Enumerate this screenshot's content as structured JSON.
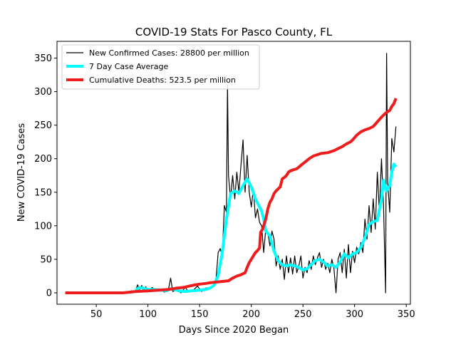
{
  "chart_data": {
    "type": "line",
    "title": "COVID-19 Stats For Pasco County, FL",
    "xlabel": "Days Since 2020 Began",
    "ylabel": "New COVID-19 Cases",
    "xlim": [
      12,
      354
    ],
    "ylim": [
      -17,
      375
    ],
    "xticks": [
      50,
      100,
      150,
      200,
      250,
      300,
      350
    ],
    "yticks": [
      0,
      50,
      100,
      150,
      200,
      250,
      300,
      350
    ],
    "grid": false,
    "legend_position": "top-left",
    "series": [
      {
        "name": "New Confirmed Cases: 28800 per million",
        "color": "#000000",
        "line_width": 1.2,
        "points": [
          [
            20,
            0
          ],
          [
            40,
            0
          ],
          [
            60,
            0
          ],
          [
            75,
            0
          ],
          [
            80,
            1
          ],
          [
            84,
            3
          ],
          [
            88,
            2
          ],
          [
            90,
            12
          ],
          [
            92,
            5
          ],
          [
            94,
            11
          ],
          [
            96,
            3
          ],
          [
            98,
            9
          ],
          [
            100,
            2
          ],
          [
            104,
            8
          ],
          [
            108,
            3
          ],
          [
            112,
            5
          ],
          [
            116,
            1
          ],
          [
            120,
            6
          ],
          [
            122,
            22
          ],
          [
            124,
            2
          ],
          [
            128,
            5
          ],
          [
            132,
            0
          ],
          [
            136,
            8
          ],
          [
            140,
            1
          ],
          [
            144,
            4
          ],
          [
            148,
            10
          ],
          [
            152,
            2
          ],
          [
            156,
            7
          ],
          [
            160,
            8
          ],
          [
            164,
            11
          ],
          [
            166,
            22
          ],
          [
            168,
            60
          ],
          [
            170,
            66
          ],
          [
            172,
            55
          ],
          [
            174,
            130
          ],
          [
            176,
            120
          ],
          [
            177,
            310
          ],
          [
            178,
            175
          ],
          [
            180,
            140
          ],
          [
            182,
            175
          ],
          [
            184,
            140
          ],
          [
            186,
            180
          ],
          [
            188,
            150
          ],
          [
            190,
            190
          ],
          [
            192,
            228
          ],
          [
            194,
            150
          ],
          [
            196,
            205
          ],
          [
            198,
            150
          ],
          [
            200,
            128
          ],
          [
            202,
            155
          ],
          [
            204,
            112
          ],
          [
            206,
            125
          ],
          [
            208,
            105
          ],
          [
            210,
            100
          ],
          [
            212,
            60
          ],
          [
            214,
            95
          ],
          [
            216,
            90
          ],
          [
            218,
            70
          ],
          [
            220,
            92
          ],
          [
            222,
            80
          ],
          [
            224,
            40
          ],
          [
            226,
            55
          ],
          [
            228,
            35
          ],
          [
            230,
            50
          ],
          [
            232,
            20
          ],
          [
            234,
            55
          ],
          [
            236,
            30
          ],
          [
            238,
            52
          ],
          [
            240,
            28
          ],
          [
            242,
            55
          ],
          [
            244,
            30
          ],
          [
            246,
            40
          ],
          [
            248,
            55
          ],
          [
            250,
            22
          ],
          [
            252,
            38
          ],
          [
            254,
            30
          ],
          [
            256,
            48
          ],
          [
            258,
            35
          ],
          [
            260,
            55
          ],
          [
            262,
            42
          ],
          [
            264,
            52
          ],
          [
            266,
            60
          ],
          [
            268,
            38
          ],
          [
            270,
            50
          ],
          [
            272,
            35
          ],
          [
            274,
            44
          ],
          [
            276,
            30
          ],
          [
            278,
            50
          ],
          [
            280,
            36
          ],
          [
            282,
            0
          ],
          [
            284,
            50
          ],
          [
            286,
            60
          ],
          [
            288,
            30
          ],
          [
            290,
            65
          ],
          [
            292,
            22
          ],
          [
            294,
            72
          ],
          [
            296,
            30
          ],
          [
            298,
            62
          ],
          [
            300,
            45
          ],
          [
            302,
            68
          ],
          [
            304,
            58
          ],
          [
            306,
            75
          ],
          [
            308,
            60
          ],
          [
            310,
            110
          ],
          [
            312,
            80
          ],
          [
            314,
            130
          ],
          [
            316,
            90
          ],
          [
            318,
            140
          ],
          [
            320,
            95
          ],
          [
            322,
            180
          ],
          [
            324,
            120
          ],
          [
            326,
            200
          ],
          [
            328,
            130
          ],
          [
            330,
            0
          ],
          [
            331,
            357
          ],
          [
            332,
            165
          ],
          [
            334,
            120
          ],
          [
            336,
            230
          ],
          [
            338,
            210
          ],
          [
            340,
            248
          ]
        ]
      },
      {
        "name": "7 Day Case Average",
        "color": "#00ffff",
        "line_width": 4,
        "points": [
          [
            88,
            4
          ],
          [
            92,
            8
          ],
          [
            96,
            7
          ],
          [
            100,
            5
          ],
          [
            106,
            5
          ],
          [
            112,
            4
          ],
          [
            118,
            3
          ],
          [
            122,
            6
          ],
          [
            126,
            5
          ],
          [
            130,
            3
          ],
          [
            136,
            2
          ],
          [
            142,
            3
          ],
          [
            150,
            4
          ],
          [
            156,
            5
          ],
          [
            160,
            7
          ],
          [
            164,
            11
          ],
          [
            168,
            26
          ],
          [
            172,
            60
          ],
          [
            176,
            110
          ],
          [
            180,
            148
          ],
          [
            184,
            152
          ],
          [
            188,
            148
          ],
          [
            192,
            160
          ],
          [
            196,
            170
          ],
          [
            200,
            158
          ],
          [
            204,
            140
          ],
          [
            208,
            128
          ],
          [
            210,
            122
          ],
          [
            212,
            110
          ],
          [
            214,
            92
          ],
          [
            218,
            85
          ],
          [
            222,
            62
          ],
          [
            226,
            48
          ],
          [
            230,
            42
          ],
          [
            234,
            40
          ],
          [
            238,
            42
          ],
          [
            242,
            40
          ],
          [
            246,
            38
          ],
          [
            250,
            34
          ],
          [
            254,
            36
          ],
          [
            258,
            42
          ],
          [
            262,
            48
          ],
          [
            266,
            50
          ],
          [
            270,
            46
          ],
          [
            274,
            40
          ],
          [
            278,
            42
          ],
          [
            282,
            38
          ],
          [
            286,
            46
          ],
          [
            290,
            58
          ],
          [
            294,
            52
          ],
          [
            298,
            58
          ],
          [
            302,
            60
          ],
          [
            306,
            68
          ],
          [
            310,
            82
          ],
          [
            314,
            102
          ],
          [
            318,
            106
          ],
          [
            322,
            108
          ],
          [
            326,
            140
          ],
          [
            328,
            168
          ],
          [
            331,
            152
          ],
          [
            334,
            160
          ],
          [
            336,
            180
          ],
          [
            338,
            192
          ],
          [
            340,
            188
          ]
        ]
      },
      {
        "name": "Cumulative Deaths: 523.5 per million",
        "color": "#ee1c1c",
        "line_width": 4,
        "points": [
          [
            20,
            0
          ],
          [
            40,
            0
          ],
          [
            60,
            0
          ],
          [
            76,
            0
          ],
          [
            82,
            1
          ],
          [
            88,
            2
          ],
          [
            100,
            3
          ],
          [
            110,
            4
          ],
          [
            120,
            5
          ],
          [
            128,
            7
          ],
          [
            134,
            8
          ],
          [
            140,
            10
          ],
          [
            146,
            12
          ],
          [
            150,
            13
          ],
          [
            156,
            14
          ],
          [
            160,
            15
          ],
          [
            166,
            16
          ],
          [
            172,
            17
          ],
          [
            178,
            18
          ],
          [
            182,
            22
          ],
          [
            186,
            25
          ],
          [
            190,
            27
          ],
          [
            194,
            30
          ],
          [
            196,
            38
          ],
          [
            198,
            45
          ],
          [
            200,
            50
          ],
          [
            202,
            55
          ],
          [
            204,
            60
          ],
          [
            206,
            63
          ],
          [
            208,
            67
          ],
          [
            209,
            90
          ],
          [
            211,
            95
          ],
          [
            214,
            110
          ],
          [
            216,
            125
          ],
          [
            218,
            135
          ],
          [
            220,
            140
          ],
          [
            222,
            148
          ],
          [
            224,
            152
          ],
          [
            226,
            155
          ],
          [
            228,
            158
          ],
          [
            230,
            170
          ],
          [
            232,
            172
          ],
          [
            234,
            175
          ],
          [
            236,
            180
          ],
          [
            238,
            182
          ],
          [
            240,
            183
          ],
          [
            244,
            185
          ],
          [
            248,
            190
          ],
          [
            252,
            195
          ],
          [
            256,
            200
          ],
          [
            260,
            204
          ],
          [
            264,
            206
          ],
          [
            268,
            208
          ],
          [
            274,
            209
          ],
          [
            280,
            212
          ],
          [
            284,
            215
          ],
          [
            288,
            218
          ],
          [
            292,
            222
          ],
          [
            296,
            225
          ],
          [
            298,
            228
          ],
          [
            302,
            235
          ],
          [
            306,
            240
          ],
          [
            310,
            243
          ],
          [
            314,
            245
          ],
          [
            318,
            248
          ],
          [
            322,
            255
          ],
          [
            326,
            262
          ],
          [
            330,
            268
          ],
          [
            334,
            272
          ],
          [
            336,
            278
          ],
          [
            338,
            282
          ],
          [
            340,
            290
          ]
        ]
      }
    ]
  }
}
